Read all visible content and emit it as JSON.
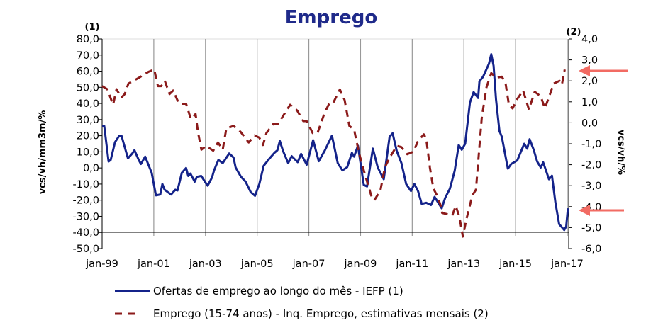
{
  "chart_data": {
    "type": "line",
    "title": "Emprego",
    "x_unit": "months since jan-99",
    "x_ticks": [
      {
        "m": 0,
        "label": "jan-99"
      },
      {
        "m": 24,
        "label": "jan-01"
      },
      {
        "m": 48,
        "label": "jan-03"
      },
      {
        "m": 72,
        "label": "jan-05"
      },
      {
        "m": 96,
        "label": "jan-07"
      },
      {
        "m": 120,
        "label": "jan-09"
      },
      {
        "m": 144,
        "label": "jan-11"
      },
      {
        "m": 168,
        "label": "jan-13"
      },
      {
        "m": 192,
        "label": "jan-15"
      },
      {
        "m": 216,
        "label": "jan-17"
      }
    ],
    "xlim": [
      0,
      216
    ],
    "left_axis": {
      "label": "vcs/vh/mm3m/%",
      "marker": "(1)",
      "ylim": [
        -50,
        80
      ],
      "ticks": [
        "80,0",
        "70,0",
        "60,0",
        "50,0",
        "40,0",
        "30,0",
        "20,0",
        "10,0",
        "0,0",
        "-10,0",
        "-20,0",
        "-30,0",
        "-40,0",
        "-50,0"
      ],
      "tick_values": [
        80,
        70,
        60,
        50,
        40,
        30,
        20,
        10,
        0,
        -10,
        -20,
        -30,
        -40,
        -50
      ]
    },
    "right_axis": {
      "label": "vcs/vh/%",
      "marker": "(2)",
      "ylim": [
        -6,
        4
      ],
      "ticks": [
        "4,0",
        "3,0",
        "2,0",
        "1,0",
        "0,0",
        "-1,0",
        "-2,0",
        "-3,0",
        "-4,0",
        "-5,0",
        "-6,0"
      ],
      "tick_values": [
        4,
        3,
        2,
        1,
        0,
        -1,
        -2,
        -3,
        -4,
        -5,
        -6
      ]
    },
    "grid": "vertical",
    "legend_position": "bottom",
    "series": [
      {
        "name": "Ofertas de emprego ao longo do mês - IEFP (1)",
        "axis": "left",
        "color": "#14238a",
        "style": "solid",
        "points": [
          [
            0,
            26
          ],
          [
            1,
            26
          ],
          [
            3,
            4
          ],
          [
            4,
            5
          ],
          [
            6,
            16
          ],
          [
            8,
            20
          ],
          [
            9,
            20
          ],
          [
            12,
            6
          ],
          [
            14,
            9
          ],
          [
            15,
            11
          ],
          [
            17,
            5
          ],
          [
            18,
            2.5
          ],
          [
            20,
            7
          ],
          [
            23,
            -3
          ],
          [
            25,
            -17
          ],
          [
            27,
            -16.5
          ],
          [
            28,
            -10
          ],
          [
            29,
            -13.5
          ],
          [
            32,
            -16.5
          ],
          [
            34,
            -13.5
          ],
          [
            35,
            -14
          ],
          [
            37,
            -3
          ],
          [
            39,
            0
          ],
          [
            40,
            -5
          ],
          [
            41,
            -3.5
          ],
          [
            43,
            -8.5
          ],
          [
            44,
            -5.5
          ],
          [
            46,
            -5
          ],
          [
            49,
            -11
          ],
          [
            51,
            -6
          ],
          [
            52,
            -1.5
          ],
          [
            54,
            5
          ],
          [
            56,
            3
          ],
          [
            59,
            9
          ],
          [
            61,
            6.5
          ],
          [
            62,
            0.3
          ],
          [
            64.5,
            -5.5
          ],
          [
            66.6,
            -8.5
          ],
          [
            69,
            -15
          ],
          [
            71,
            -17.3
          ],
          [
            73,
            -10
          ],
          [
            75,
            1.3
          ],
          [
            77.6,
            5.7
          ],
          [
            80,
            9.4
          ],
          [
            81.4,
            11
          ],
          [
            82.5,
            16.7
          ],
          [
            84,
            10.6
          ],
          [
            86.4,
            3
          ],
          [
            88,
            7.3
          ],
          [
            90.8,
            3.6
          ],
          [
            92.4,
            8.7
          ],
          [
            95,
            2
          ],
          [
            98,
            17.2
          ],
          [
            100.6,
            4.2
          ],
          [
            103.4,
            10.8
          ],
          [
            106.7,
            20
          ],
          [
            109.4,
            3
          ],
          [
            111.6,
            -1.5
          ],
          [
            113.8,
            0.5
          ],
          [
            116,
            9.4
          ],
          [
            117,
            7
          ],
          [
            118.8,
            13.8
          ],
          [
            121.5,
            -10.5
          ],
          [
            123,
            -11.5
          ],
          [
            125.7,
            12
          ],
          [
            128,
            0.3
          ],
          [
            130.8,
            -7
          ],
          [
            133.5,
            19.3
          ],
          [
            134.9,
            21.5
          ],
          [
            136.8,
            10.5
          ],
          [
            139,
            3
          ],
          [
            141.2,
            -10
          ],
          [
            143.4,
            -14.3
          ],
          [
            145,
            -10
          ],
          [
            146.7,
            -14.3
          ],
          [
            148.4,
            -22.3
          ],
          [
            150.5,
            -21.6
          ],
          [
            152.7,
            -23
          ],
          [
            154.4,
            -18
          ],
          [
            157.7,
            -25
          ],
          [
            159.3,
            -18.6
          ],
          [
            161.5,
            -12.8
          ],
          [
            163.7,
            -1.8
          ],
          [
            165.6,
            14.2
          ],
          [
            167,
            11.3
          ],
          [
            168.6,
            15
          ],
          [
            170.8,
            40.5
          ],
          [
            172.5,
            47
          ],
          [
            174.6,
            43.4
          ],
          [
            175.2,
            53.7
          ],
          [
            176.9,
            56.6
          ],
          [
            179.6,
            64.6
          ],
          [
            180.7,
            70.5
          ],
          [
            181.8,
            63.3
          ],
          [
            182.9,
            42.6
          ],
          [
            184.5,
            23
          ],
          [
            185.6,
            19.3
          ],
          [
            188.4,
            -0.4
          ],
          [
            190,
            2.5
          ],
          [
            192.8,
            4.7
          ],
          [
            196,
            15
          ],
          [
            197.4,
            12
          ],
          [
            198.5,
            17.8
          ],
          [
            200.4,
            11.3
          ],
          [
            202,
            4
          ],
          [
            203.7,
            0.3
          ],
          [
            204.8,
            3.5
          ],
          [
            207.5,
            -7
          ],
          [
            208.9,
            -4.8
          ],
          [
            210.5,
            -21.6
          ],
          [
            212.2,
            -34.8
          ],
          [
            214.6,
            -38.5
          ],
          [
            215.5,
            -36.3
          ],
          [
            216.3,
            -25
          ]
        ]
      },
      {
        "name": "Emprego (15-74 anos) - Inq. Emprego, estimativas  mensais (2)",
        "axis": "right",
        "color": "#8b1a1a",
        "style": "dashed",
        "points": [
          [
            0,
            1.75
          ],
          [
            2.4,
            1.6
          ],
          [
            5.1,
            0.86
          ],
          [
            6.7,
            1.6
          ],
          [
            8.9,
            1.2
          ],
          [
            10.5,
            1.37
          ],
          [
            12.2,
            1.87
          ],
          [
            17.1,
            2.15
          ],
          [
            21.5,
            2.43
          ],
          [
            24.2,
            2.54
          ],
          [
            25.9,
            1.75
          ],
          [
            27.5,
            1.75
          ],
          [
            29.1,
            2
          ],
          [
            31.3,
            1.37
          ],
          [
            33,
            1.54
          ],
          [
            35.7,
            0.91
          ],
          [
            39,
            0.91
          ],
          [
            41.2,
            0.19
          ],
          [
            43.4,
            0.42
          ],
          [
            44.5,
            -0.43
          ],
          [
            46.1,
            -1.28
          ],
          [
            48.3,
            -1.1
          ],
          [
            51.6,
            -1.33
          ],
          [
            53.8,
            -0.94
          ],
          [
            56,
            -1.28
          ],
          [
            57.7,
            -0.27
          ],
          [
            61,
            -0.15
          ],
          [
            64.3,
            -0.43
          ],
          [
            68.1,
            -0.94
          ],
          [
            70.8,
            -0.6
          ],
          [
            73,
            -0.71
          ],
          [
            74.7,
            -1.06
          ],
          [
            76.3,
            -0.49
          ],
          [
            79.6,
            -0.04
          ],
          [
            81.8,
            -0.04
          ],
          [
            84.6,
            0.42
          ],
          [
            87.3,
            0.86
          ],
          [
            90.6,
            0.58
          ],
          [
            93.4,
            0.08
          ],
          [
            95,
            0.08
          ],
          [
            97.8,
            -0.49
          ],
          [
            100,
            -0.49
          ],
          [
            103.3,
            0.47
          ],
          [
            105.4,
            0.91
          ],
          [
            107.1,
            0.91
          ],
          [
            110.4,
            1.59
          ],
          [
            112.6,
            1.08
          ],
          [
            114.8,
            -0.15
          ],
          [
            117,
            -0.32
          ],
          [
            119.3,
            -1.44
          ],
          [
            122,
            -2.45
          ],
          [
            125.3,
            -3.58
          ],
          [
            126.4,
            -3.69
          ],
          [
            129.2,
            -3.24
          ],
          [
            131.3,
            -2.12
          ],
          [
            133.5,
            -1.67
          ],
          [
            136.8,
            -1.1
          ],
          [
            139,
            -1.16
          ],
          [
            141.7,
            -1.5
          ],
          [
            144.5,
            -1.38
          ],
          [
            146.7,
            -0.87
          ],
          [
            149.4,
            -0.55
          ],
          [
            150.5,
            -0.76
          ],
          [
            152.2,
            -2.12
          ],
          [
            153.8,
            -3.13
          ],
          [
            155.5,
            -3.47
          ],
          [
            157.1,
            -3.91
          ],
          [
            157.9,
            -4.3
          ],
          [
            160.4,
            -4.36
          ],
          [
            162.6,
            -4.42
          ],
          [
            164.2,
            -3.97
          ],
          [
            165.9,
            -4.47
          ],
          [
            167.5,
            -5.43
          ],
          [
            169.2,
            -4.58
          ],
          [
            171.9,
            -3.47
          ],
          [
            173.6,
            -3.19
          ],
          [
            174.6,
            -1.89
          ],
          [
            176.3,
            0.24
          ],
          [
            178.5,
            1.7
          ],
          [
            180.7,
            2.37
          ],
          [
            182.9,
            2.15
          ],
          [
            185.6,
            2.2
          ],
          [
            187.3,
            1.92
          ],
          [
            188.9,
            0.86
          ],
          [
            190.6,
            0.69
          ],
          [
            192.8,
            1.14
          ],
          [
            195.5,
            1.54
          ],
          [
            198.2,
            0.64
          ],
          [
            200.9,
            1.48
          ],
          [
            203.7,
            1.26
          ],
          [
            205.6,
            0.69
          ],
          [
            208,
            1.37
          ],
          [
            209.7,
            1.87
          ],
          [
            212.4,
            2.0
          ],
          [
            213.5,
            1.82
          ],
          [
            214.8,
            2.54
          ]
        ]
      }
    ],
    "annotations": [
      {
        "type": "arrow",
        "color": "#f26b63",
        "points_to": "right axis, ~2.5 (end of series 2)"
      },
      {
        "type": "arrow",
        "color": "#f26b63",
        "points_to": "right axis, ~-4.2 (end of series 1)"
      }
    ]
  }
}
